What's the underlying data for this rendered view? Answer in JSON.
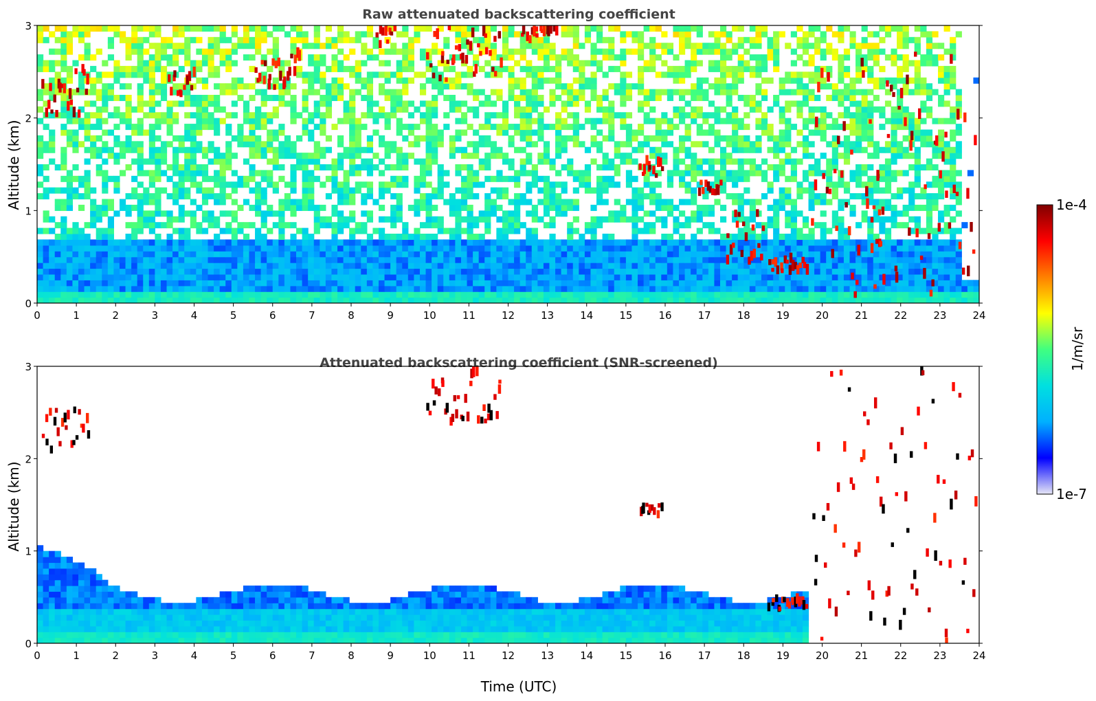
{
  "chart_data": [
    {
      "type": "heatmap",
      "title": "Raw attenuated backscattering coefficient",
      "xlabel": "",
      "ylabel": "Altitude (km)",
      "xlim": [
        0,
        24
      ],
      "ylim": [
        0,
        3
      ],
      "xticks": [
        "0",
        "1",
        "2",
        "3",
        "4",
        "5",
        "6",
        "7",
        "8",
        "9",
        "10",
        "11",
        "12",
        "13",
        "14",
        "15",
        "16",
        "17",
        "18",
        "19",
        "20",
        "21",
        "22",
        "23",
        "24"
      ],
      "yticks": [
        "0",
        "1",
        "2",
        "3"
      ],
      "colorscale": "jet",
      "features": [
        {
          "kind": "cloud",
          "t0": 0.1,
          "t1": 1.3,
          "z0": 2.0,
          "z1": 2.5
        },
        {
          "kind": "cloud",
          "t0": 3.3,
          "t1": 4.0,
          "z0": 2.2,
          "z1": 2.45
        },
        {
          "kind": "cloud",
          "t0": 5.5,
          "t1": 6.7,
          "z0": 2.3,
          "z1": 2.65
        },
        {
          "kind": "cloud",
          "t0": 8.6,
          "t1": 9.1,
          "z0": 2.75,
          "z1": 3.0
        },
        {
          "kind": "cloud",
          "t0": 9.9,
          "t1": 11.8,
          "z0": 2.35,
          "z1": 2.95
        },
        {
          "kind": "cloud",
          "t0": 12.3,
          "t1": 13.2,
          "z0": 2.8,
          "z1": 3.0
        },
        {
          "kind": "cloud",
          "t0": 15.3,
          "t1": 15.9,
          "z0": 1.35,
          "z1": 1.5
        },
        {
          "kind": "cloud",
          "t0": 16.8,
          "t1": 17.4,
          "z0": 1.15,
          "z1": 1.3
        },
        {
          "kind": "cloud",
          "t0": 17.5,
          "t1": 18.5,
          "z0": 0.4,
          "z1": 1.0
        },
        {
          "kind": "cloud",
          "t0": 18.6,
          "t1": 19.6,
          "z0": 0.3,
          "z1": 0.45
        },
        {
          "kind": "cloud",
          "t0": 19.7,
          "t1": 21.5,
          "z0": 0.0,
          "z1": 3.0
        },
        {
          "kind": "cloud",
          "t0": 21.2,
          "t1": 23.9,
          "z0": 0.0,
          "z1": 2.7
        }
      ]
    },
    {
      "type": "heatmap",
      "title": "Attenuated backscattering coefficient (SNR-screened)",
      "xlabel": "Time (UTC)",
      "ylabel": "Altitude (km)",
      "xlim": [
        0,
        24
      ],
      "ylim": [
        0,
        3
      ],
      "xticks": [
        "0",
        "1",
        "2",
        "3",
        "4",
        "5",
        "6",
        "7",
        "8",
        "9",
        "10",
        "11",
        "12",
        "13",
        "14",
        "15",
        "16",
        "17",
        "18",
        "19",
        "20",
        "21",
        "22",
        "23",
        "24"
      ],
      "yticks": [
        "0",
        "1",
        "2",
        "3"
      ],
      "colorscale": "jet",
      "features": [
        {
          "kind": "boundary-layer",
          "t0": 0.0,
          "t1": 19.7,
          "z0": 0.0,
          "z1": 0.6
        },
        {
          "kind": "cloud",
          "t0": 0.1,
          "t1": 1.3,
          "z0": 2.0,
          "z1": 2.5
        },
        {
          "kind": "cloud",
          "t0": 9.9,
          "t1": 11.8,
          "z0": 2.35,
          "z1": 2.95
        },
        {
          "kind": "cloud",
          "t0": 15.3,
          "t1": 15.9,
          "z0": 1.35,
          "z1": 1.5
        },
        {
          "kind": "cloud",
          "t0": 18.6,
          "t1": 19.6,
          "z0": 0.3,
          "z1": 0.45
        },
        {
          "kind": "cloud",
          "t0": 19.7,
          "t1": 23.9,
          "z0": 0.0,
          "z1": 3.0
        }
      ]
    }
  ],
  "colorbar": {
    "label": "1/m/sr",
    "max_label": "1e-4",
    "min_label": "1e-7",
    "range": [
      1e-07,
      0.0001
    ],
    "scale": "log",
    "colors": [
      "#e6e6f5",
      "#0000ff",
      "#00b0ff",
      "#00e0e0",
      "#40ff80",
      "#ffff00",
      "#ff8000",
      "#ff0000",
      "#800000"
    ]
  }
}
